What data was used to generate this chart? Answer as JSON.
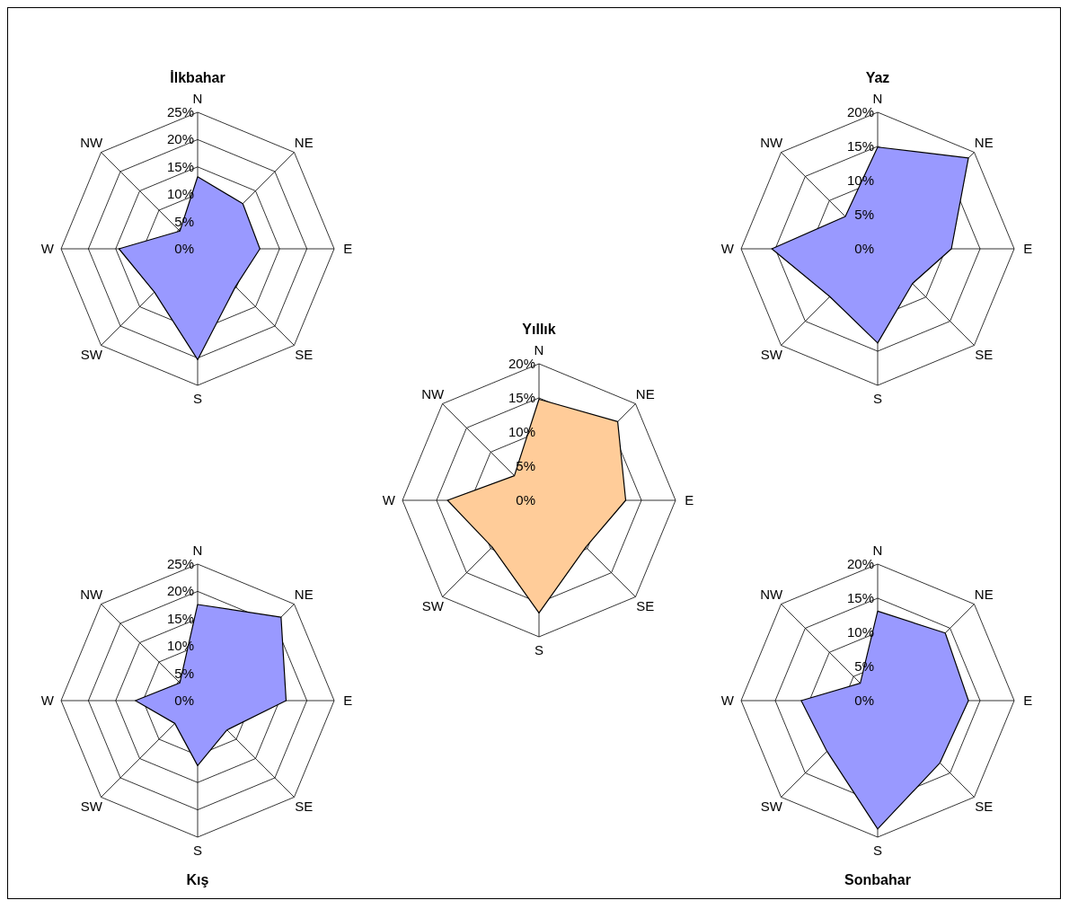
{
  "chart_data": [
    {
      "type": "radar",
      "title": "İlkbahar",
      "categories": [
        "N",
        "NE",
        "E",
        "SE",
        "S",
        "SW",
        "W",
        "NW"
      ],
      "ylim": [
        0,
        25
      ],
      "yticks": [
        {
          "value": 0,
          "label": "0%"
        },
        {
          "value": 5,
          "label": "5%"
        },
        {
          "value": 10,
          "label": "10%"
        },
        {
          "value": 15,
          "label": "15%"
        },
        {
          "value": 20,
          "label": "20%"
        },
        {
          "value": 25,
          "label": "25%"
        }
      ],
      "grid": true,
      "series": [
        {
          "color": "#9999ff",
          "values": [
            13.2,
            11.7,
            11.4,
            9.8,
            20.3,
            11.2,
            14.4,
            4.6
          ]
        }
      ]
    },
    {
      "type": "radar",
      "title": "Yaz",
      "categories": [
        "N",
        "NE",
        "E",
        "SE",
        "S",
        "SW",
        "W",
        "NW"
      ],
      "ylim": [
        0,
        20
      ],
      "yticks": [
        {
          "value": 0,
          "label": "0%"
        },
        {
          "value": 5,
          "label": "5%"
        },
        {
          "value": 10,
          "label": "10%"
        },
        {
          "value": 15,
          "label": "15%"
        },
        {
          "value": 20,
          "label": "20%"
        }
      ],
      "grid": true,
      "series": [
        {
          "color": "#9999ff",
          "values": [
            14.9,
            18.8,
            10.8,
            7.2,
            13.8,
            9.9,
            15.5,
            6.7
          ]
        }
      ]
    },
    {
      "type": "radar",
      "title": "Yıllık",
      "categories": [
        "N",
        "NE",
        "E",
        "SE",
        "S",
        "SW",
        "W",
        "NW"
      ],
      "ylim": [
        0,
        20
      ],
      "yticks": [
        {
          "value": 0,
          "label": "0%"
        },
        {
          "value": 5,
          "label": "5%"
        },
        {
          "value": 10,
          "label": "10%"
        },
        {
          "value": 15,
          "label": "15%"
        },
        {
          "value": 20,
          "label": "20%"
        }
      ],
      "grid": true,
      "series": [
        {
          "color": "#ffcc99",
          "values": [
            14.8,
            16.3,
            12.7,
            9.7,
            16.5,
            9.7,
            13.4,
            5.1
          ]
        }
      ]
    },
    {
      "type": "radar",
      "title": "Kış",
      "categories": [
        "N",
        "NE",
        "E",
        "SE",
        "S",
        "SW",
        "W",
        "NW"
      ],
      "ylim": [
        0,
        25
      ],
      "yticks": [
        {
          "value": 0,
          "label": "0%"
        },
        {
          "value": 5,
          "label": "5%"
        },
        {
          "value": 10,
          "label": "10%"
        },
        {
          "value": 15,
          "label": "15%"
        },
        {
          "value": 20,
          "label": "20%"
        },
        {
          "value": 25,
          "label": "25%"
        }
      ],
      "grid": true,
      "series": [
        {
          "color": "#9999ff",
          "values": [
            17.6,
            21.6,
            16.2,
            7.6,
            11.9,
            5.9,
            11.4,
            4.6
          ]
        }
      ]
    },
    {
      "type": "radar",
      "title": "Sonbahar",
      "categories": [
        "N",
        "NE",
        "E",
        "SE",
        "S",
        "SW",
        "W",
        "NW"
      ],
      "ylim": [
        0,
        20
      ],
      "yticks": [
        {
          "value": 0,
          "label": "0%"
        },
        {
          "value": 5,
          "label": "5%"
        },
        {
          "value": 10,
          "label": "10%"
        },
        {
          "value": 15,
          "label": "15%"
        },
        {
          "value": 20,
          "label": "20%"
        }
      ],
      "grid": true,
      "series": [
        {
          "color": "#9999ff",
          "values": [
            13.1,
            14.0,
            13.3,
            12.9,
            18.8,
            10.5,
            11.2,
            3.6
          ]
        }
      ]
    }
  ]
}
